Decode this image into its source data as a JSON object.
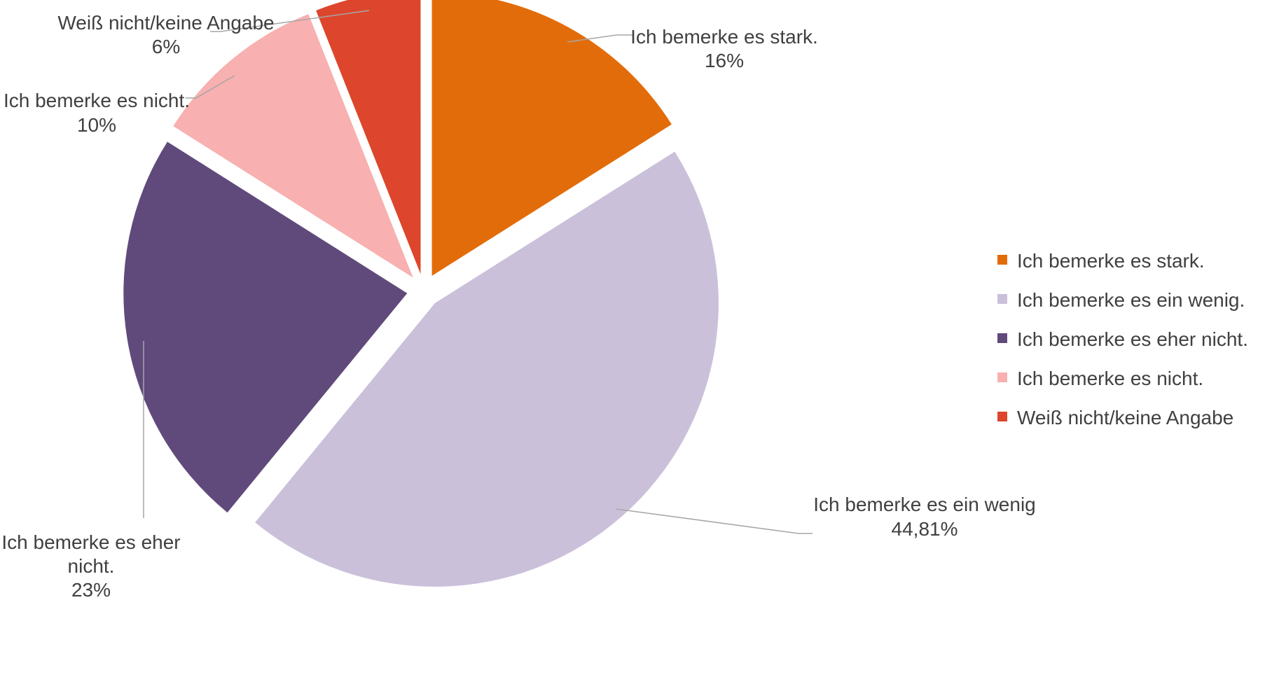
{
  "chart_data": {
    "type": "pie",
    "title": "",
    "legend_position": "right",
    "slices": [
      {
        "legend": "Ich bemerke es stark.",
        "label_lines": [
          "Ich bemerke es stark.",
          "16%"
        ],
        "value": 16,
        "color": "#e36c0a"
      },
      {
        "legend": "Ich bemerke es ein wenig.",
        "label_lines": [
          "Ich bemerke es ein wenig",
          "44,81%"
        ],
        "value": 44.81,
        "color": "#cbc0da"
      },
      {
        "legend": "Ich bemerke es eher nicht.",
        "label_lines": [
          "Ich bemerke es eher",
          "nicht.",
          "23%"
        ],
        "value": 23,
        "color": "#604a7b"
      },
      {
        "legend": "Ich bemerke es nicht.",
        "label_lines": [
          "Ich bemerke es nicht.",
          "10%"
        ],
        "value": 10,
        "color": "#f8b0b0"
      },
      {
        "legend": "Weiß nicht/keine Angabe",
        "label_lines": [
          "Weiß nicht/keine Angabe",
          "6%"
        ],
        "value": 6,
        "color": "#dd462c"
      }
    ]
  }
}
